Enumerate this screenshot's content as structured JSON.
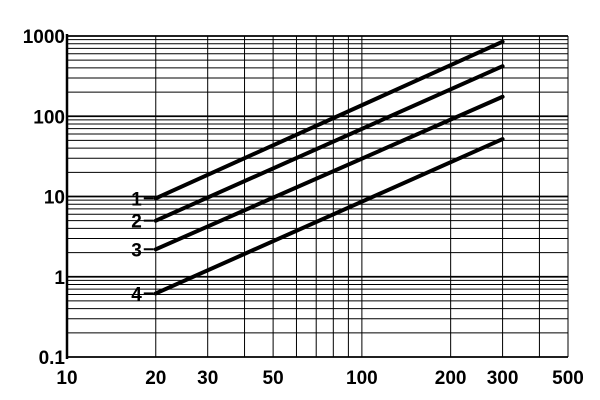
{
  "chart_data": {
    "type": "line",
    "title": "",
    "xlabel": "",
    "ylabel": "",
    "x_scale": "log",
    "y_scale": "log",
    "xlim": [
      10,
      500
    ],
    "ylim": [
      0.1,
      1000
    ],
    "grid": true,
    "x_ticks": [
      {
        "value": 10,
        "label": "10"
      },
      {
        "value": 20,
        "label": "20"
      },
      {
        "value": 30,
        "label": "30"
      },
      {
        "value": 50,
        "label": "50"
      },
      {
        "value": 100,
        "label": "100"
      },
      {
        "value": 200,
        "label": "200"
      },
      {
        "value": 300,
        "label": "300"
      },
      {
        "value": 500,
        "label": "500"
      }
    ],
    "y_ticks": [
      {
        "value": 0.1,
        "label": "0.1"
      },
      {
        "value": 1,
        "label": "1"
      },
      {
        "value": 10,
        "label": "10"
      },
      {
        "value": 100,
        "label": "100"
      },
      {
        "value": 1000,
        "label": "1000"
      }
    ],
    "series": [
      {
        "name": "1",
        "x": [
          20,
          300
        ],
        "y": [
          9.5,
          850
        ]
      },
      {
        "name": "2",
        "x": [
          20,
          300
        ],
        "y": [
          5,
          420
        ]
      },
      {
        "name": "3",
        "x": [
          20,
          300
        ],
        "y": [
          2.2,
          175
        ]
      },
      {
        "name": "4",
        "x": [
          20,
          300
        ],
        "y": [
          0.62,
          52
        ]
      }
    ]
  }
}
